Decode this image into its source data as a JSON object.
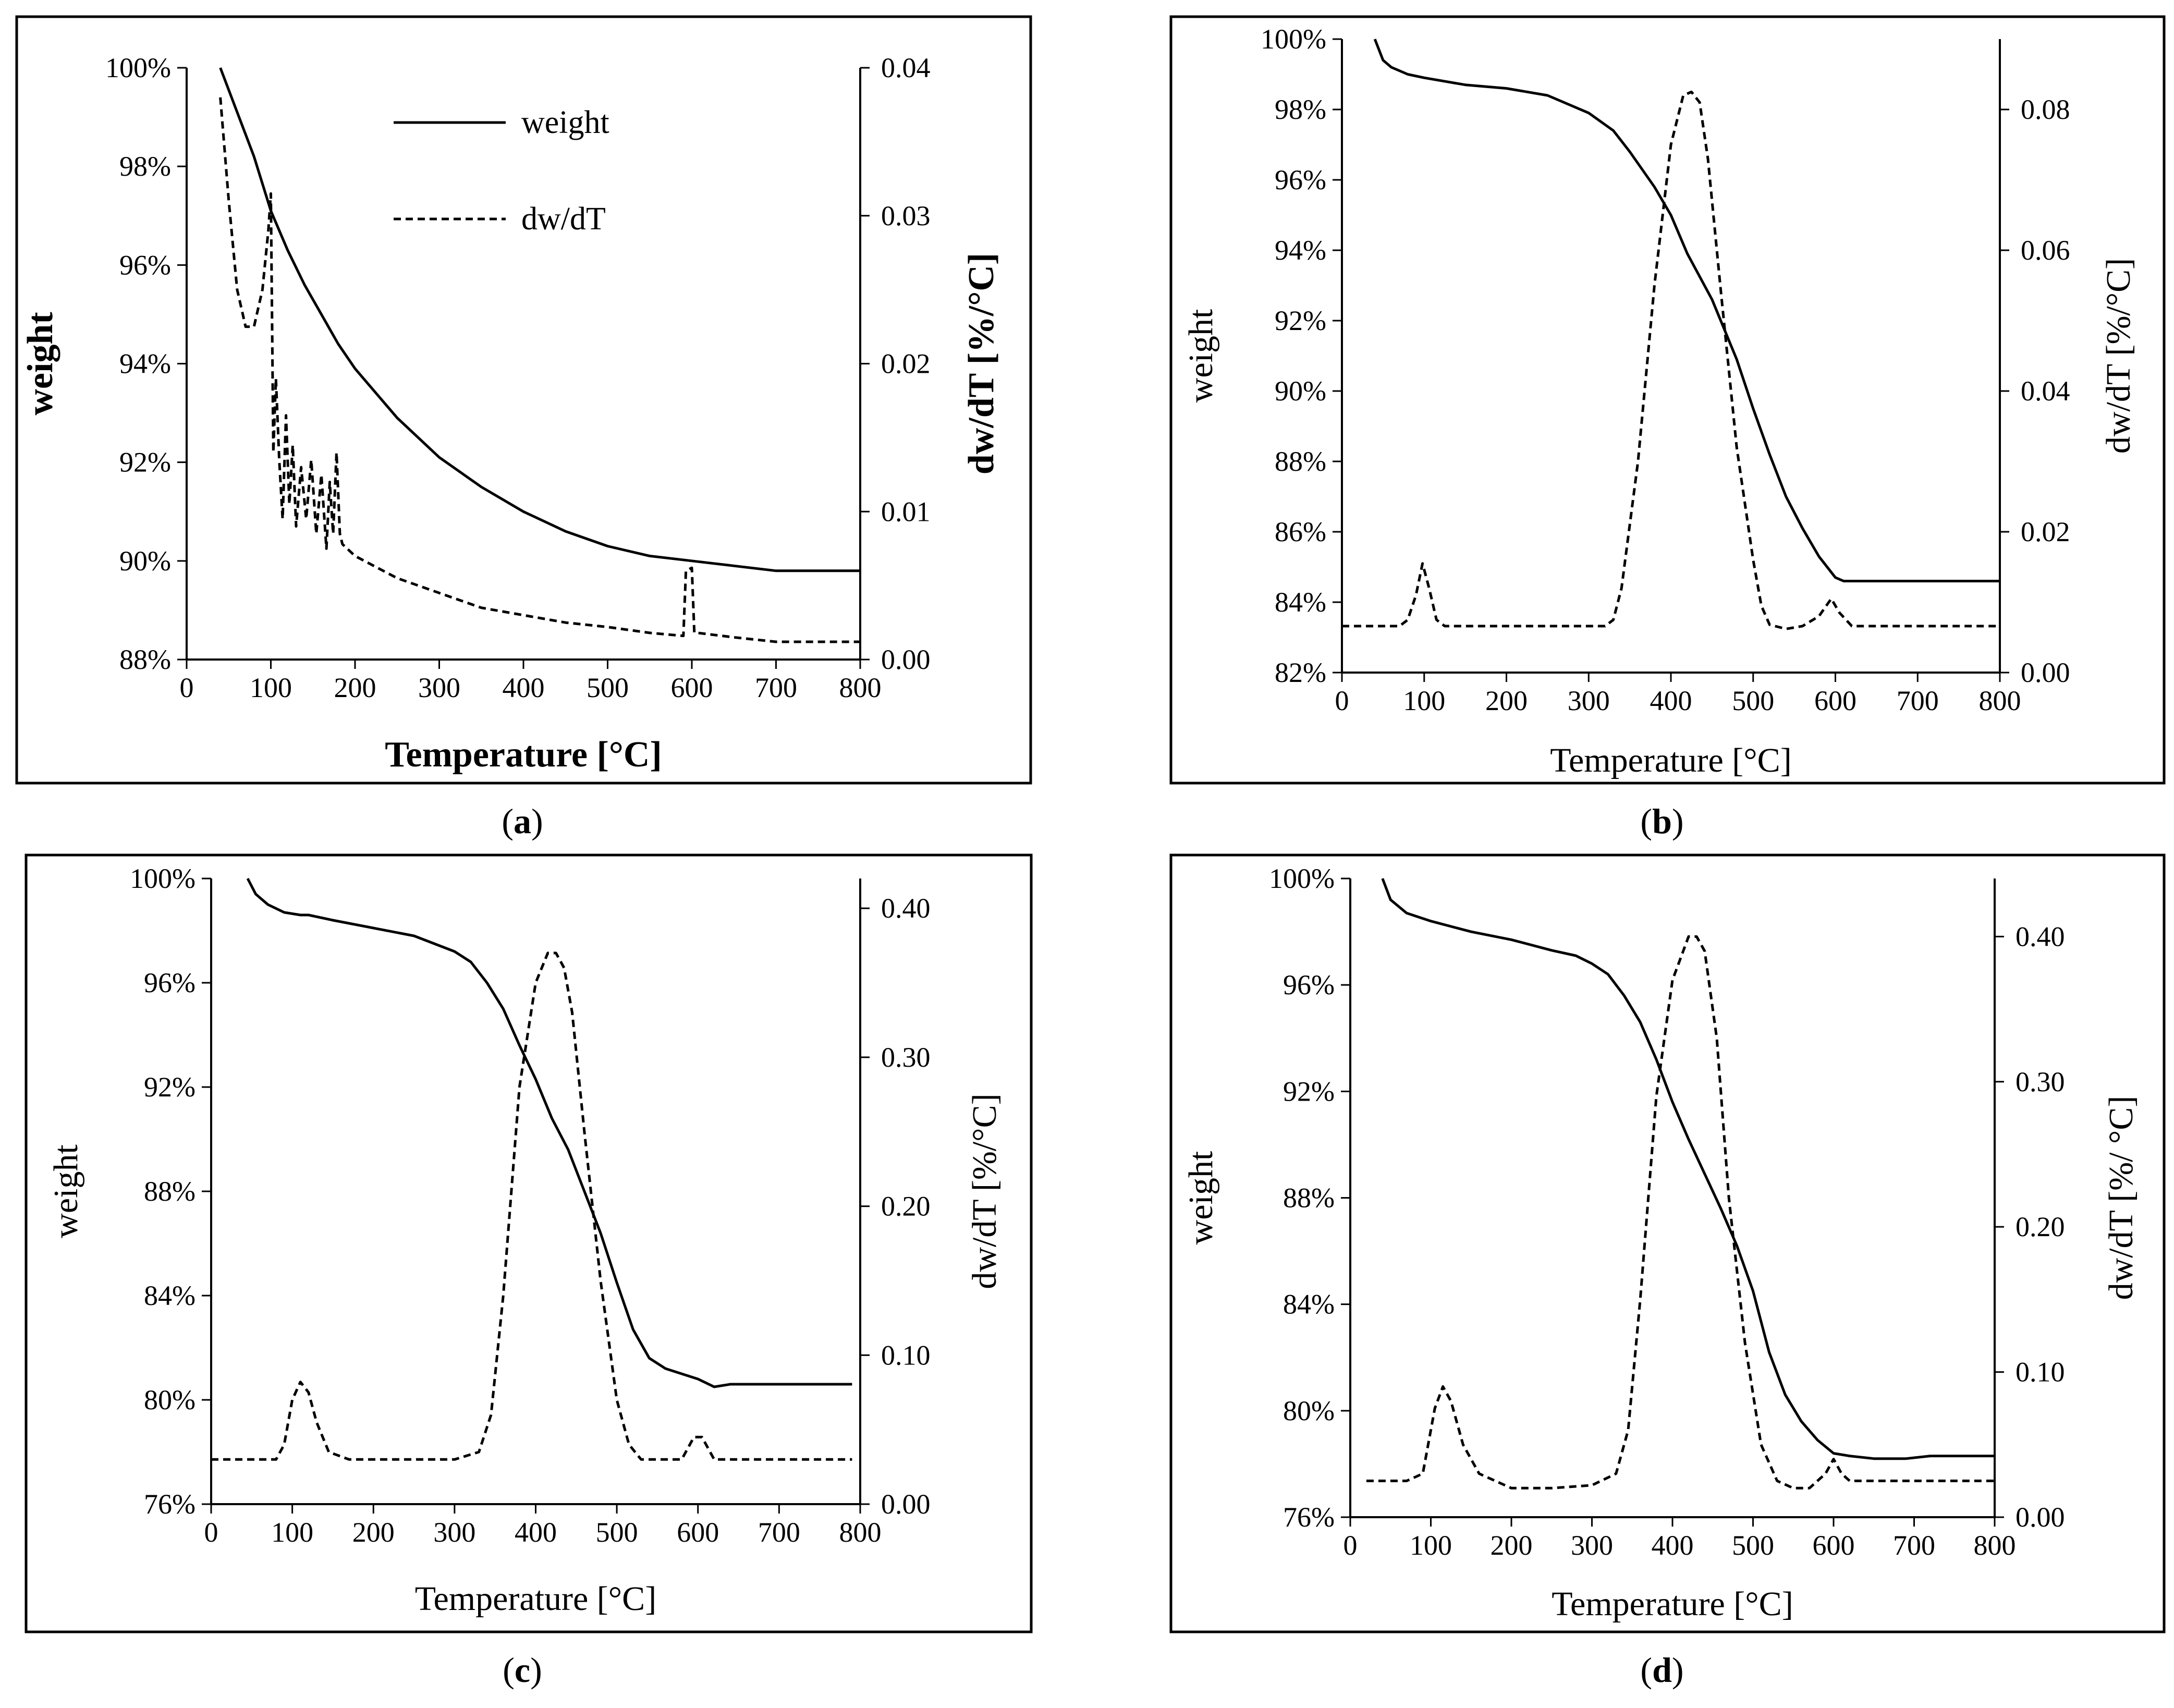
{
  "figure": {
    "panel_labels": [
      {
        "open": "(",
        "letter": "a",
        "close": ")"
      },
      {
        "open": "(",
        "letter": "b",
        "close": ")"
      },
      {
        "open": "(",
        "letter": "c",
        "close": ")"
      },
      {
        "open": "(",
        "letter": "d",
        "close": ")"
      }
    ]
  },
  "chart_data": [
    {
      "type": "line",
      "panel": "a",
      "title": "",
      "xlabel": "Temperature [°C]",
      "ylabel": "weight",
      "y2label": "dw/dT   [%/°C]",
      "bold_labels": true,
      "xlim": [
        0,
        800
      ],
      "ylim": [
        88,
        100
      ],
      "y2lim": [
        0,
        0.04
      ],
      "x_ticks": [
        "0",
        "100",
        "200",
        "300",
        "400",
        "500",
        "600",
        "700",
        "800"
      ],
      "y_ticks": [
        "88%",
        "90%",
        "92%",
        "94%",
        "96%",
        "98%",
        "100%"
      ],
      "y2_ticks": [
        "0.00",
        "0.01",
        "0.02",
        "0.03",
        "0.04"
      ],
      "legend": {
        "position": "top-center",
        "entries": [
          "weight",
          "dw/dT"
        ]
      },
      "grid": false,
      "series": [
        {
          "name": "weight",
          "axis": "left",
          "style": "solid",
          "x": [
            40,
            60,
            80,
            100,
            120,
            140,
            160,
            180,
            200,
            250,
            300,
            350,
            400,
            450,
            500,
            550,
            600,
            650,
            700,
            720,
            800
          ],
          "y": [
            100,
            99.1,
            98.2,
            97.1,
            96.3,
            95.6,
            95.0,
            94.4,
            93.9,
            92.9,
            92.1,
            91.5,
            91.0,
            90.6,
            90.3,
            90.1,
            90.0,
            89.9,
            89.8,
            89.8,
            89.8
          ]
        },
        {
          "name": "dw/dT",
          "axis": "right",
          "style": "dashed",
          "x": [
            40,
            50,
            60,
            70,
            80,
            90,
            97,
            100,
            103,
            106,
            110,
            114,
            118,
            122,
            126,
            130,
            136,
            142,
            148,
            154,
            160,
            166,
            170,
            174,
            178,
            182,
            185,
            200,
            250,
            300,
            350,
            400,
            450,
            500,
            550,
            590,
            593,
            600,
            603,
            607,
            650,
            700,
            750,
            800
          ],
          "y": [
            0.038,
            0.031,
            0.025,
            0.0225,
            0.0225,
            0.025,
            0.029,
            0.0315,
            0.014,
            0.019,
            0.0135,
            0.0095,
            0.0165,
            0.0105,
            0.0145,
            0.009,
            0.013,
            0.0095,
            0.0135,
            0.0085,
            0.0125,
            0.0075,
            0.012,
            0.0085,
            0.014,
            0.0085,
            0.0078,
            0.007,
            0.0055,
            0.0045,
            0.0035,
            0.003,
            0.0025,
            0.0022,
            0.0018,
            0.0016,
            0.006,
            0.0062,
            0.0018,
            0.0018,
            0.0015,
            0.0012,
            0.0012,
            0.0012
          ]
        }
      ]
    },
    {
      "type": "line",
      "panel": "b",
      "title": "",
      "xlabel": "Temperature [°C]",
      "ylabel": "weight",
      "y2label": "dw/dT [%/°C]",
      "bold_labels": false,
      "xlim": [
        0,
        800
      ],
      "ylim": [
        82,
        100
      ],
      "y2lim": [
        0,
        0.09
      ],
      "x_ticks": [
        "0",
        "100",
        "200",
        "300",
        "400",
        "500",
        "600",
        "700",
        "800"
      ],
      "y_ticks": [
        "82%",
        "84%",
        "86%",
        "88%",
        "90%",
        "92%",
        "94%",
        "96%",
        "98%",
        "100%"
      ],
      "y2_ticks": [
        "0.00",
        "0.02",
        "0.04",
        "0.06",
        "0.08"
      ],
      "grid": false,
      "series": [
        {
          "name": "weight",
          "axis": "left",
          "style": "solid",
          "x": [
            40,
            50,
            60,
            80,
            100,
            150,
            200,
            250,
            300,
            330,
            350,
            380,
            400,
            420,
            450,
            480,
            500,
            520,
            540,
            560,
            580,
            600,
            610,
            800
          ],
          "y": [
            100,
            99.4,
            99.2,
            99.0,
            98.9,
            98.7,
            98.6,
            98.4,
            97.9,
            97.4,
            96.8,
            95.8,
            95.0,
            93.9,
            92.6,
            90.9,
            89.5,
            88.2,
            87.0,
            86.1,
            85.3,
            84.7,
            84.6,
            84.6
          ]
        },
        {
          "name": "dw/dT",
          "axis": "right",
          "style": "dashed",
          "x": [
            0,
            70,
            80,
            90,
            98,
            106,
            115,
            125,
            140,
            200,
            300,
            320,
            330,
            340,
            360,
            380,
            400,
            415,
            425,
            435,
            445,
            460,
            480,
            500,
            510,
            520,
            540,
            560,
            580,
            595,
            605,
            620,
            640,
            700,
            800
          ],
          "y": [
            0.0066,
            0.0066,
            0.0075,
            0.011,
            0.0155,
            0.012,
            0.0075,
            0.0066,
            0.0066,
            0.0066,
            0.0066,
            0.0066,
            0.0075,
            0.012,
            0.03,
            0.055,
            0.075,
            0.082,
            0.0825,
            0.081,
            0.073,
            0.055,
            0.032,
            0.016,
            0.0095,
            0.0068,
            0.0062,
            0.0066,
            0.008,
            0.0105,
            0.0085,
            0.0066,
            0.0066,
            0.0066,
            0.0066
          ]
        }
      ]
    },
    {
      "type": "line",
      "panel": "c",
      "title": "",
      "xlabel": "Temperature [°C]",
      "ylabel": "weight",
      "y2label": "dw/dT [%/°C]",
      "bold_labels": false,
      "xlim": [
        0,
        800
      ],
      "ylim": [
        76,
        100
      ],
      "y2lim": [
        0,
        0.42
      ],
      "x_ticks": [
        "0",
        "100",
        "200",
        "300",
        "400",
        "500",
        "600",
        "700",
        "800"
      ],
      "y_ticks": [
        "76%",
        "80%",
        "84%",
        "88%",
        "92%",
        "96%",
        "100%"
      ],
      "y2_ticks": [
        "0.00",
        "0.10",
        "0.20",
        "0.30",
        "0.40"
      ],
      "grid": false,
      "series": [
        {
          "name": "weight",
          "axis": "left",
          "style": "solid",
          "x": [
            45,
            55,
            70,
            90,
            110,
            120,
            150,
            200,
            250,
            300,
            320,
            340,
            360,
            380,
            400,
            420,
            440,
            460,
            480,
            500,
            520,
            540,
            560,
            580,
            600,
            620,
            640,
            660,
            700,
            790
          ],
          "y": [
            100,
            99.4,
            99.0,
            98.7,
            98.6,
            98.6,
            98.4,
            98.1,
            97.8,
            97.2,
            96.8,
            96.0,
            95.0,
            93.6,
            92.3,
            90.8,
            89.6,
            88.0,
            86.4,
            84.5,
            82.7,
            81.6,
            81.2,
            81.0,
            80.8,
            80.5,
            80.6,
            80.6,
            80.6,
            80.6
          ]
        },
        {
          "name": "dw/dT",
          "axis": "right",
          "style": "dashed",
          "x": [
            0,
            80,
            90,
            100,
            110,
            120,
            130,
            145,
            170,
            300,
            330,
            345,
            360,
            380,
            400,
            415,
            425,
            435,
            445,
            460,
            480,
            500,
            515,
            530,
            560,
            580,
            595,
            605,
            620,
            650,
            790
          ],
          "y": [
            0.03,
            0.03,
            0.04,
            0.07,
            0.082,
            0.075,
            0.055,
            0.035,
            0.03,
            0.03,
            0.035,
            0.06,
            0.14,
            0.28,
            0.35,
            0.37,
            0.37,
            0.36,
            0.33,
            0.25,
            0.15,
            0.07,
            0.04,
            0.03,
            0.03,
            0.03,
            0.045,
            0.045,
            0.03,
            0.03,
            0.03
          ]
        }
      ]
    },
    {
      "type": "line",
      "panel": "d",
      "title": "",
      "xlabel": "Temperature [°C]",
      "ylabel": "weight",
      "y2label": "dw/dT [%/ °C]",
      "bold_labels": false,
      "xlim": [
        0,
        800
      ],
      "ylim": [
        76,
        100
      ],
      "y2lim": [
        0,
        0.44
      ],
      "x_ticks": [
        "0",
        "100",
        "200",
        "300",
        "400",
        "500",
        "600",
        "700",
        "800"
      ],
      "y_ticks": [
        "76%",
        "80%",
        "84%",
        "88%",
        "92%",
        "96%",
        "100%"
      ],
      "y2_ticks": [
        "0.00",
        "0.10",
        "0.20",
        "0.30",
        "0.40"
      ],
      "grid": false,
      "series": [
        {
          "name": "weight",
          "axis": "left",
          "style": "solid",
          "x": [
            40,
            50,
            70,
            100,
            150,
            200,
            250,
            280,
            300,
            320,
            340,
            360,
            380,
            400,
            420,
            440,
            460,
            480,
            500,
            520,
            540,
            560,
            580,
            600,
            620,
            650,
            690,
            720,
            800
          ],
          "y": [
            100,
            99.2,
            98.7,
            98.4,
            98.0,
            97.7,
            97.3,
            97.1,
            96.8,
            96.4,
            95.6,
            94.6,
            93.2,
            91.6,
            90.2,
            88.9,
            87.6,
            86.2,
            84.5,
            82.2,
            80.6,
            79.6,
            78.9,
            78.4,
            78.3,
            78.2,
            78.2,
            78.3,
            78.3
          ]
        },
        {
          "name": "dw/dT",
          "axis": "right",
          "style": "dashed",
          "x": [
            20,
            70,
            90,
            105,
            115,
            125,
            140,
            160,
            200,
            250,
            300,
            330,
            345,
            360,
            380,
            400,
            420,
            430,
            440,
            455,
            470,
            490,
            510,
            530,
            550,
            570,
            590,
            600,
            610,
            620,
            650,
            800
          ],
          "y": [
            0.025,
            0.025,
            0.03,
            0.075,
            0.09,
            0.08,
            0.05,
            0.03,
            0.02,
            0.02,
            0.022,
            0.03,
            0.06,
            0.15,
            0.29,
            0.37,
            0.4,
            0.4,
            0.39,
            0.33,
            0.22,
            0.12,
            0.05,
            0.025,
            0.02,
            0.02,
            0.03,
            0.04,
            0.03,
            0.025,
            0.025,
            0.025
          ]
        }
      ]
    }
  ]
}
